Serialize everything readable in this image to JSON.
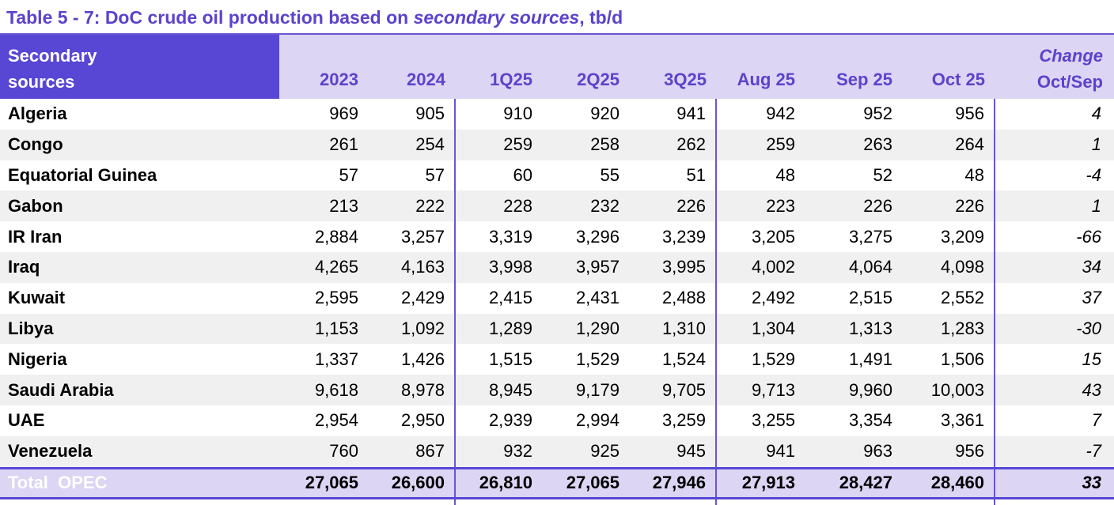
{
  "title": {
    "prefix": "Table 5 - 7: DoC crude oil production based on ",
    "emphasis": "secondary sources",
    "suffix": ", tb/d"
  },
  "table": {
    "corner_header": {
      "line1": "Secondary",
      "line2": "sources"
    },
    "column_headers": [
      "2023",
      "2024",
      "1Q25",
      "2Q25",
      "3Q25",
      "Aug 25",
      "Sep 25",
      "Oct 25"
    ],
    "change_header": {
      "line1": "Change",
      "line2": "Oct/Sep"
    },
    "rows": [
      {
        "country": "Algeria",
        "values": [
          "969",
          "905",
          "910",
          "920",
          "941",
          "942",
          "952",
          "956"
        ],
        "change": "4"
      },
      {
        "country": "Congo",
        "values": [
          "261",
          "254",
          "259",
          "258",
          "262",
          "259",
          "263",
          "264"
        ],
        "change": "1"
      },
      {
        "country": "Equatorial Guinea",
        "values": [
          "57",
          "57",
          "60",
          "55",
          "51",
          "48",
          "52",
          "48"
        ],
        "change": "-4"
      },
      {
        "country": "Gabon",
        "values": [
          "213",
          "222",
          "228",
          "232",
          "226",
          "223",
          "226",
          "226"
        ],
        "change": "1"
      },
      {
        "country": "IR Iran",
        "values": [
          "2,884",
          "3,257",
          "3,319",
          "3,296",
          "3,239",
          "3,205",
          "3,275",
          "3,209"
        ],
        "change": "-66"
      },
      {
        "country": "Iraq",
        "values": [
          "4,265",
          "4,163",
          "3,998",
          "3,957",
          "3,995",
          "4,002",
          "4,064",
          "4,098"
        ],
        "change": "34"
      },
      {
        "country": "Kuwait",
        "values": [
          "2,595",
          "2,429",
          "2,415",
          "2,431",
          "2,488",
          "2,492",
          "2,515",
          "2,552"
        ],
        "change": "37"
      },
      {
        "country": "Libya",
        "values": [
          "1,153",
          "1,092",
          "1,289",
          "1,290",
          "1,310",
          "1,304",
          "1,313",
          "1,283"
        ],
        "change": "-30"
      },
      {
        "country": "Nigeria",
        "values": [
          "1,337",
          "1,426",
          "1,515",
          "1,529",
          "1,524",
          "1,529",
          "1,491",
          "1,506"
        ],
        "change": "15"
      },
      {
        "country": "Saudi Arabia",
        "values": [
          "9,618",
          "8,978",
          "8,945",
          "9,179",
          "9,705",
          "9,713",
          "9,960",
          "10,003"
        ],
        "change": "43"
      },
      {
        "country": "UAE",
        "values": [
          "2,954",
          "2,950",
          "2,939",
          "2,994",
          "3,259",
          "3,255",
          "3,354",
          "3,361"
        ],
        "change": "7"
      },
      {
        "country": "Venezuela",
        "values": [
          "760",
          "867",
          "932",
          "925",
          "945",
          "941",
          "963",
          "956"
        ],
        "change": "-7"
      }
    ],
    "total_row": {
      "label": "Total  OPEC",
      "values": [
        "27,065",
        "26,600",
        "26,810",
        "27,065",
        "27,946",
        "27,913",
        "28,427",
        "28,460"
      ],
      "change": "33"
    }
  },
  "colors": {
    "purple_fill": "#5747d4",
    "lavender_fill": "#dcd5f3",
    "header_text": "#5b43cb",
    "separator_line": "#6a55d2",
    "row_stripe": "#f0f0f0",
    "data_text": "#000000"
  }
}
